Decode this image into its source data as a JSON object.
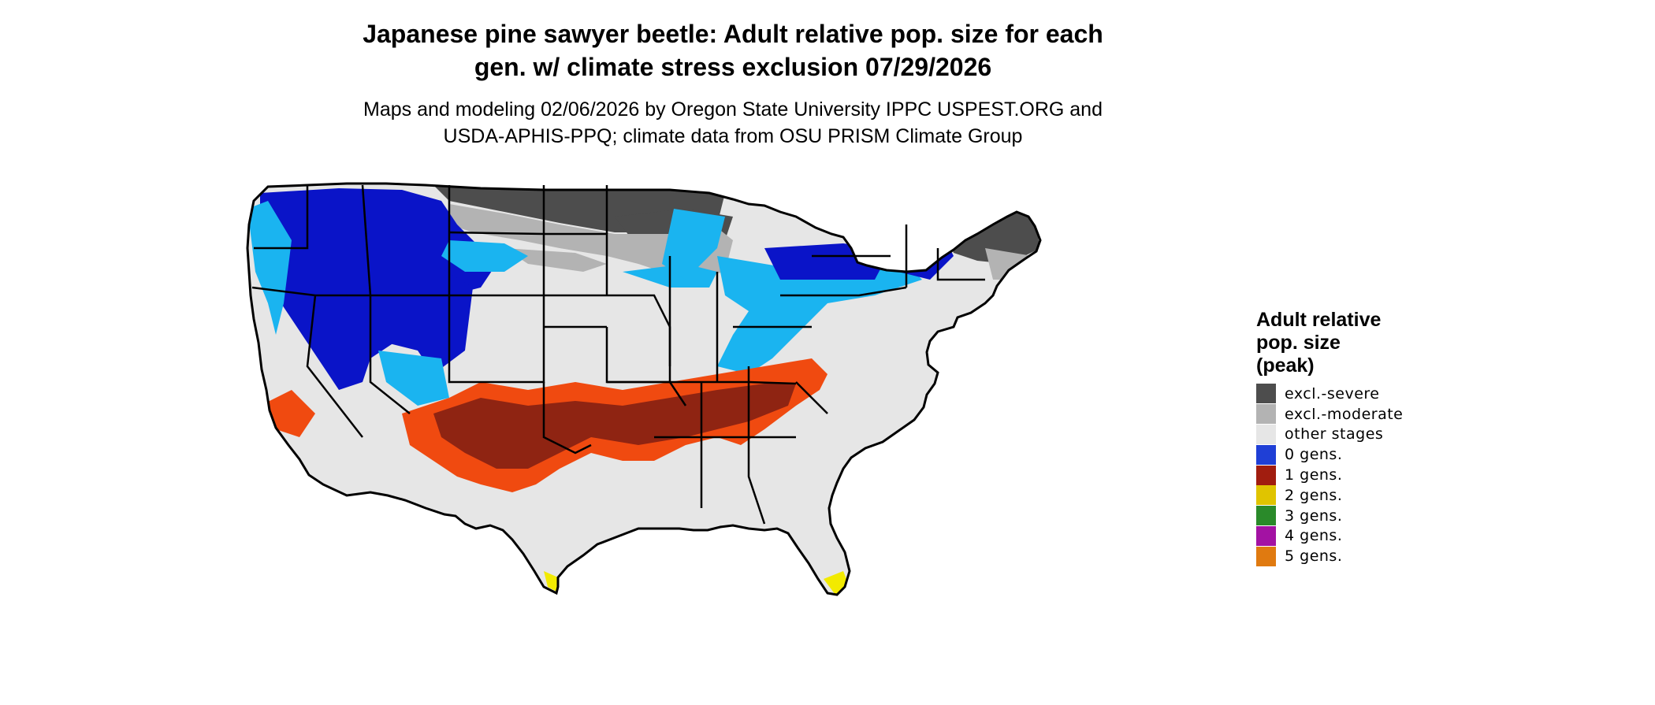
{
  "title_line1": "Japanese pine sawyer beetle: Adult relative pop. size for each",
  "title_line2": "gen. w/ climate stress exclusion 07/29/2026",
  "subtitle_line1": "Maps and modeling 02/06/2026 by Oregon State University IPPC USPEST.ORG and",
  "subtitle_line2": "USDA-APHIS-PPQ; climate data from OSU PRISM Climate Group",
  "legend": {
    "title_line1": "Adult relative",
    "title_line2": "pop. size",
    "title_line3": "(peak)",
    "items": [
      {
        "label": "excl.-severe",
        "color": "#4d4d4d"
      },
      {
        "label": "excl.-moderate",
        "color": "#b3b3b3"
      },
      {
        "label": "other stages",
        "color": "#e6e6e6"
      },
      {
        "label": "0 gens.",
        "color": "#1f3fd6"
      },
      {
        "label": "1 gens.",
        "color": "#a11d0f"
      },
      {
        "label": "2 gens.",
        "color": "#e0c400"
      },
      {
        "label": "3 gens.",
        "color": "#2a8a2a"
      },
      {
        "label": "4 gens.",
        "color": "#a312a3"
      },
      {
        "label": "5 gens.",
        "color": "#e07a10"
      }
    ]
  },
  "map_colors": {
    "other_stages": "#e6e6e6",
    "excl_severe": "#4d4d4d",
    "excl_moderate": "#b3b3b3",
    "zero_gen_dark": "#0a14c8",
    "zero_gen_light": "#1ab4f0",
    "one_gen_dark": "#8f2412",
    "one_gen_orange": "#f04a10",
    "two_gen_yellow": "#f2ea00",
    "border": "#000000"
  }
}
